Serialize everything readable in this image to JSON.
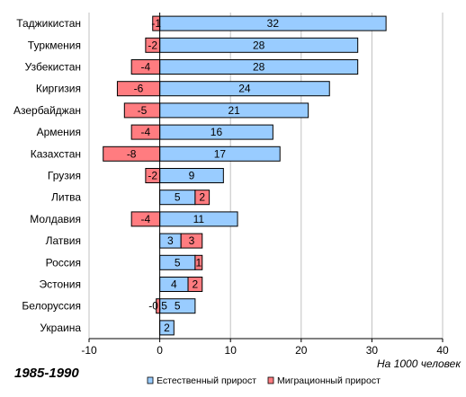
{
  "chart_data": {
    "type": "bar",
    "orientation": "horizontal",
    "stacked": true,
    "categories": [
      "Таджикистан",
      "Туркмения",
      "Узбекистан",
      "Киргизия",
      "Азербайджан",
      "Армения",
      "Казахстан",
      "Грузия",
      "Литва",
      "Молдавия",
      "Латвия",
      "Россия",
      "Эстония",
      "Белоруссия",
      "Украина"
    ],
    "series": [
      {
        "name": "Естественный прирост",
        "color": "#99ccff",
        "values": [
          32,
          28,
          28,
          24,
          21,
          16,
          17,
          9,
          5,
          11,
          3,
          5,
          4,
          5,
          2
        ],
        "labels": [
          "32",
          "28",
          "28",
          "24",
          "21",
          "16",
          "17",
          "9",
          "5",
          "11",
          "3",
          "5",
          "4",
          "5",
          "2"
        ]
      },
      {
        "name": "Миграционный прирост",
        "color": "#ff7c80",
        "values": [
          -1,
          -2,
          -4,
          -6,
          -5,
          -4,
          -8,
          -2,
          2,
          -4,
          3,
          1,
          2,
          -0.5,
          0
        ],
        "labels": [
          "-1",
          "-2",
          "-4",
          "-6",
          "-5",
          "-4",
          "-8",
          "-2",
          "2",
          "-4",
          "3",
          "1",
          "2",
          "-0,5",
          ""
        ]
      }
    ],
    "xlim": [
      -10,
      40
    ],
    "xticks": [
      "-10",
      "0",
      "10",
      "20",
      "30",
      "40"
    ],
    "unit_label": "На 1000 человек",
    "period_label": "1985-1990",
    "grid": "vertical",
    "legend": "bottom"
  }
}
